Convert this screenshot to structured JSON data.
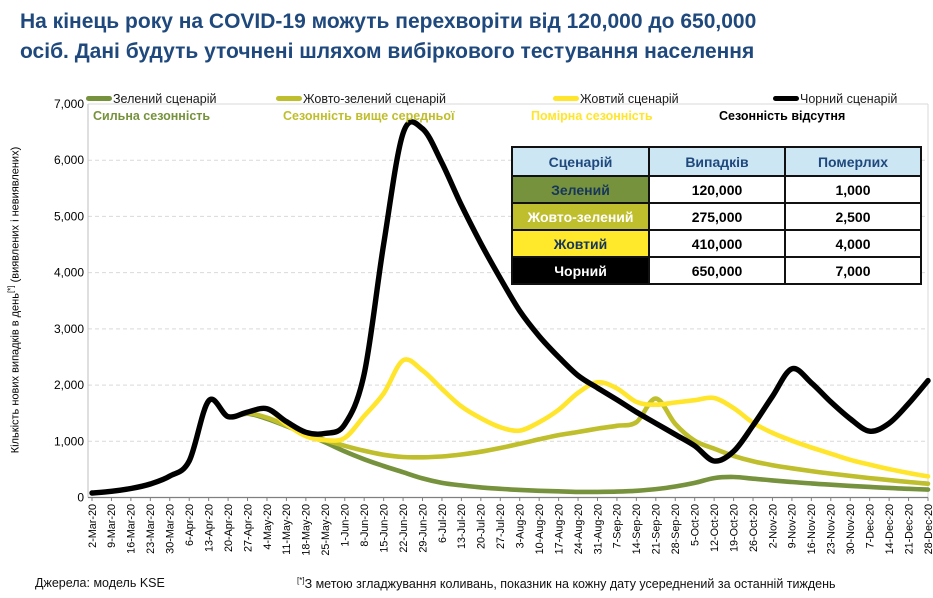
{
  "title": {
    "line1": "На кінець року на COVID-19 можуть перехворіти від 120,000 до 650,000",
    "line2": "осіб. Дані будуть уточнені шляхом вибіркового тестування населення"
  },
  "legend": [
    {
      "label": "Зелений сценарій",
      "sublabel": "Сильна сезонність",
      "color": "#76923C"
    },
    {
      "label": "Жовто-зелений сценарій",
      "sublabel": "Сезонність вище середньої",
      "color": "#BFBE2C"
    },
    {
      "label": "Жовтий сценарій",
      "sublabel": "Помірна сезонність",
      "color": "#FFE52B"
    },
    {
      "label": "Чорний сценарій",
      "sublabel": "Сезонність відсутня",
      "color": "#000000"
    }
  ],
  "table": {
    "headers": [
      "Сценарій",
      "Випадків",
      "Померлих"
    ],
    "rows": [
      {
        "name": "Зелений",
        "cases": "120,000",
        "deaths": "1,000",
        "bg": "#76923C",
        "fg": "#17365D"
      },
      {
        "name": "Жовто-зелений",
        "cases": "275,000",
        "deaths": "2,500",
        "bg": "#BFBE2C",
        "fg": "#FFFFFF"
      },
      {
        "name": "Жовтий",
        "cases": "410,000",
        "deaths": "4,000",
        "bg": "#FFE92A",
        "fg": "#17365D"
      },
      {
        "name": "Чорний",
        "cases": "650,000",
        "deaths": "7,000",
        "bg": "#000000",
        "fg": "#FFFFFF"
      }
    ]
  },
  "chart_data": {
    "type": "line",
    "title": "",
    "ylabel": {
      "pre": "Кількість нових випадків в день",
      "sup": "[*]",
      "post": " (виявлених і невиявлених)"
    },
    "ylim": [
      0,
      7000
    ],
    "grid": "horizontal-dashed",
    "legend_position": "top",
    "y_ticks": [
      "0",
      "1,000",
      "2,000",
      "3,000",
      "4,000",
      "5,000",
      "6,000",
      "7,000"
    ],
    "x_labels": [
      "2-Mar-20",
      "9-Mar-20",
      "16-Mar-20",
      "23-Mar-20",
      "30-Mar-20",
      "6-Apr-20",
      "13-Apr-20",
      "20-Apr-20",
      "27-Apr-20",
      "4-May-20",
      "11-May-20",
      "18-May-20",
      "25-May-20",
      "1-Jun-20",
      "8-Jun-20",
      "15-Jun-20",
      "22-Jun-20",
      "29-Jun-20",
      "6-Jul-20",
      "13-Jul-20",
      "20-Jul-20",
      "27-Jul-20",
      "3-Aug-20",
      "10-Aug-20",
      "17-Aug-20",
      "24-Aug-20",
      "31-Aug-20",
      "7-Sep-20",
      "14-Sep-20",
      "21-Sep-20",
      "28-Sep-20",
      "5-Oct-20",
      "12-Oct-20",
      "19-Oct-20",
      "26-Oct-20",
      "2-Nov-20",
      "9-Nov-20",
      "16-Nov-20",
      "23-Nov-20",
      "30-Nov-20",
      "7-Dec-20",
      "14-Dec-20",
      "21-Dec-20",
      "28-Dec-20"
    ],
    "series": [
      {
        "name": "Зелений сценарій",
        "color": "#76923C",
        "width": 4.6,
        "values": [
          80,
          110,
          160,
          240,
          380,
          650,
          1720,
          1440,
          1490,
          1400,
          1270,
          1130,
          980,
          820,
          680,
          560,
          450,
          340,
          260,
          215,
          180,
          155,
          135,
          120,
          110,
          100,
          100,
          105,
          120,
          150,
          195,
          260,
          345,
          365,
          335,
          305,
          275,
          250,
          228,
          207,
          188,
          170,
          155,
          140
        ]
      },
      {
        "name": "Жовто-зелений сценарій",
        "color": "#BFBE2C",
        "width": 4.6,
        "values": [
          80,
          110,
          160,
          240,
          380,
          650,
          1720,
          1440,
          1500,
          1420,
          1280,
          1150,
          1020,
          920,
          830,
          760,
          720,
          715,
          730,
          765,
          815,
          880,
          955,
          1035,
          1110,
          1165,
          1225,
          1275,
          1340,
          1760,
          1310,
          1010,
          870,
          740,
          645,
          575,
          520,
          470,
          425,
          385,
          345,
          310,
          275,
          245
        ]
      },
      {
        "name": "Жовтий сценарій",
        "color": "#FFE52B",
        "width": 4.6,
        "values": [
          80,
          110,
          160,
          240,
          380,
          650,
          1720,
          1440,
          1520,
          1580,
          1300,
          1090,
          1020,
          1060,
          1450,
          1850,
          2440,
          2260,
          1930,
          1620,
          1410,
          1250,
          1190,
          1340,
          1560,
          1860,
          2050,
          1940,
          1700,
          1650,
          1690,
          1730,
          1770,
          1590,
          1330,
          1150,
          1010,
          890,
          780,
          670,
          585,
          505,
          435,
          375
        ]
      },
      {
        "name": "Чорний сценарій",
        "color": "#000000",
        "width": 5.4,
        "values": [
          80,
          110,
          160,
          240,
          380,
          650,
          1720,
          1440,
          1520,
          1580,
          1350,
          1160,
          1140,
          1300,
          2200,
          4500,
          6480,
          6560,
          5950,
          5200,
          4520,
          3900,
          3320,
          2870,
          2500,
          2170,
          1950,
          1740,
          1520,
          1320,
          1120,
          920,
          650,
          820,
          1280,
          1800,
          2290,
          2040,
          1700,
          1400,
          1180,
          1320,
          1670,
          2080
        ]
      }
    ]
  },
  "footer": {
    "source": "Джерела: модель KSE",
    "footnote_sup": "[*]",
    "footnote": "З метою згладжування коливань, показник на кожну дату усереднений за останній тиждень"
  }
}
